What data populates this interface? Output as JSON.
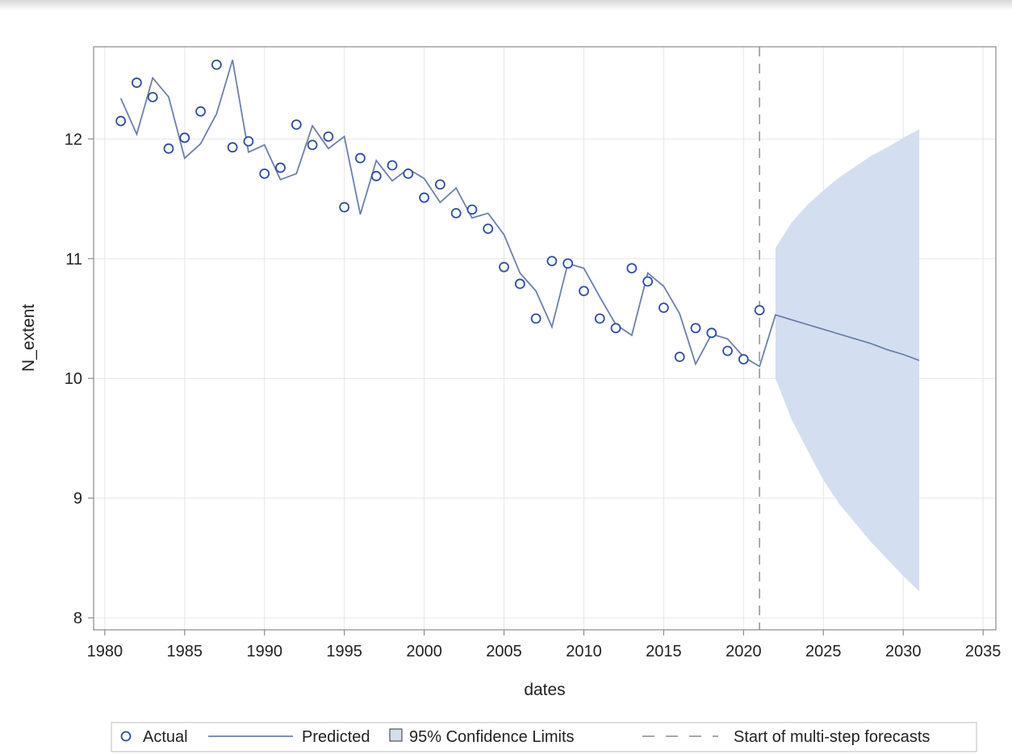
{
  "chart_data": {
    "type": "line",
    "xlabel": "dates",
    "ylabel": "N_extent",
    "xlim": [
      1979.3,
      2035.8
    ],
    "ylim": [
      7.9,
      12.77
    ],
    "xticks": [
      "1980",
      "1985",
      "1990",
      "1995",
      "2000",
      "2005",
      "2010",
      "2015",
      "2020",
      "2025",
      "2030",
      "2035"
    ],
    "yticks": [
      "8",
      "9",
      "10",
      "11",
      "12"
    ],
    "grid": true,
    "legend_position": "bottom",
    "legend": {
      "actual": "Actual",
      "predicted": "Predicted",
      "ci": "95% Confidence Limits",
      "forecast_start": "Start of multi-step forecasts"
    },
    "forecast_start_year": 2021,
    "colors": {
      "actual": "#2a4fa0",
      "predicted": "#6b80ad",
      "ci_fill": "#d3dff0",
      "ref_line": "#8a8a8a",
      "grid": "#e6e6e6",
      "frame": "#8a8a8a"
    },
    "series": [
      {
        "name": "Actual",
        "points": [
          [
            1981,
            12.15
          ],
          [
            1982,
            12.47
          ],
          [
            1983,
            12.35
          ],
          [
            1984,
            11.92
          ],
          [
            1985,
            12.01
          ],
          [
            1986,
            12.23
          ],
          [
            1987,
            12.62
          ],
          [
            1988,
            11.93
          ],
          [
            1989,
            11.98
          ],
          [
            1990,
            11.71
          ],
          [
            1991,
            11.76
          ],
          [
            1992,
            12.12
          ],
          [
            1993,
            11.95
          ],
          [
            1994,
            12.02
          ],
          [
            1995,
            11.43
          ],
          [
            1996,
            11.84
          ],
          [
            1997,
            11.69
          ],
          [
            1998,
            11.78
          ],
          [
            1999,
            11.71
          ],
          [
            2000,
            11.51
          ],
          [
            2001,
            11.62
          ],
          [
            2002,
            11.38
          ],
          [
            2003,
            11.41
          ],
          [
            2004,
            11.25
          ],
          [
            2005,
            10.93
          ],
          [
            2006,
            10.79
          ],
          [
            2007,
            10.5
          ],
          [
            2008,
            10.98
          ],
          [
            2009,
            10.96
          ],
          [
            2010,
            10.73
          ],
          [
            2011,
            10.5
          ],
          [
            2012,
            10.42
          ],
          [
            2013,
            10.92
          ],
          [
            2014,
            10.81
          ],
          [
            2015,
            10.59
          ],
          [
            2016,
            10.18
          ],
          [
            2017,
            10.42
          ],
          [
            2018,
            10.38
          ],
          [
            2019,
            10.23
          ],
          [
            2020,
            10.16
          ],
          [
            2021,
            10.57
          ]
        ]
      },
      {
        "name": "Predicted",
        "points": [
          [
            1981,
            12.34
          ],
          [
            1982,
            12.04
          ],
          [
            1983,
            12.51
          ],
          [
            1984,
            12.35
          ],
          [
            1985,
            11.84
          ],
          [
            1986,
            11.96
          ],
          [
            1987,
            12.21
          ],
          [
            1988,
            12.66
          ],
          [
            1989,
            11.89
          ],
          [
            1990,
            11.95
          ],
          [
            1991,
            11.66
          ],
          [
            1992,
            11.71
          ],
          [
            1993,
            12.11
          ],
          [
            1994,
            11.92
          ],
          [
            1995,
            12.02
          ],
          [
            1996,
            11.37
          ],
          [
            1997,
            11.82
          ],
          [
            1998,
            11.65
          ],
          [
            1999,
            11.75
          ],
          [
            2000,
            11.67
          ],
          [
            2001,
            11.47
          ],
          [
            2002,
            11.59
          ],
          [
            2003,
            11.34
          ],
          [
            2004,
            11.38
          ],
          [
            2005,
            11.2
          ],
          [
            2006,
            10.88
          ],
          [
            2007,
            10.73
          ],
          [
            2008,
            10.43
          ],
          [
            2009,
            10.96
          ],
          [
            2010,
            10.92
          ],
          [
            2011,
            10.68
          ],
          [
            2012,
            10.45
          ],
          [
            2013,
            10.36
          ],
          [
            2014,
            10.88
          ],
          [
            2015,
            10.77
          ],
          [
            2016,
            10.54
          ],
          [
            2017,
            10.12
          ],
          [
            2018,
            10.37
          ],
          [
            2019,
            10.33
          ],
          [
            2020,
            10.18
          ],
          [
            2021,
            10.1
          ],
          [
            2022,
            10.53
          ],
          [
            2023,
            10.49
          ],
          [
            2024,
            10.45
          ],
          [
            2025,
            10.41
          ],
          [
            2026,
            10.37
          ],
          [
            2027,
            10.33
          ],
          [
            2028,
            10.29
          ],
          [
            2029,
            10.24
          ],
          [
            2030,
            10.2
          ],
          [
            2031,
            10.15
          ]
        ]
      },
      {
        "name": "95% Confidence Limits",
        "points": [
          [
            2022,
            10.0,
            11.09
          ],
          [
            2023,
            9.66,
            11.3
          ],
          [
            2024,
            9.4,
            11.45
          ],
          [
            2025,
            9.15,
            11.57
          ],
          [
            2026,
            8.95,
            11.68
          ],
          [
            2027,
            8.79,
            11.77
          ],
          [
            2028,
            8.63,
            11.86
          ],
          [
            2029,
            8.49,
            11.93
          ],
          [
            2030,
            8.35,
            12.01
          ],
          [
            2031,
            8.22,
            12.08
          ]
        ]
      }
    ]
  }
}
